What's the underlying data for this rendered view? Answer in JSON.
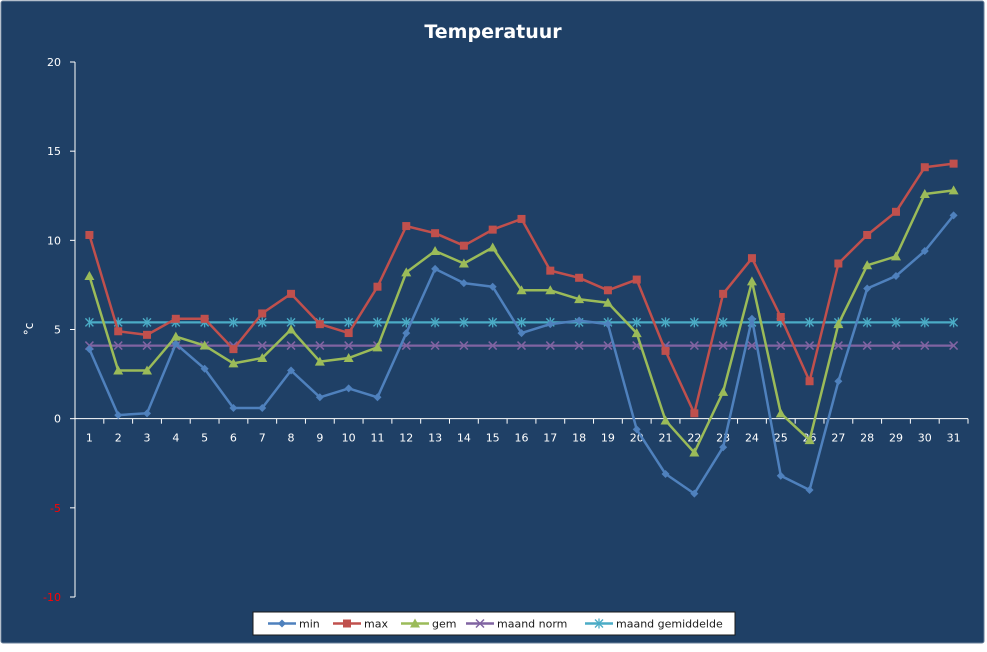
{
  "colors": {
    "background": "#1f4066",
    "border": "#6a7f99",
    "axis": "#ffffff",
    "label": "#ffffff",
    "negative_label": "#ff0000",
    "legend_bg": "#ffffff"
  },
  "chart_data": {
    "type": "line",
    "title": "Temperatuur",
    "ylabel": "°c",
    "xlabel": "",
    "ylim": [
      -10,
      20
    ],
    "ytick_step": 5,
    "grid": false,
    "legend_position": "bottom",
    "categories": [
      "1",
      "2",
      "3",
      "4",
      "5",
      "6",
      "7",
      "8",
      "9",
      "10",
      "11",
      "12",
      "13",
      "14",
      "15",
      "16",
      "17",
      "18",
      "19",
      "20",
      "21",
      "22",
      "23",
      "24",
      "25",
      "26",
      "27",
      "28",
      "29",
      "30",
      "31"
    ],
    "series": [
      {
        "name": "min",
        "color": "#4f81bd",
        "marker": "diamond",
        "values": [
          3.9,
          0.2,
          0.3,
          4.2,
          2.8,
          0.6,
          0.6,
          2.7,
          1.2,
          1.7,
          1.2,
          4.8,
          8.4,
          7.6,
          7.4,
          4.8,
          5.3,
          5.5,
          5.3,
          -0.6,
          -3.1,
          -4.2,
          -1.6,
          5.6,
          -3.2,
          -4.0,
          2.1,
          7.3,
          8.0,
          9.4,
          11.4
        ]
      },
      {
        "name": "max",
        "color": "#c0504d",
        "marker": "square",
        "values": [
          10.3,
          4.9,
          4.7,
          5.6,
          5.6,
          3.9,
          5.9,
          7.0,
          5.3,
          4.8,
          7.4,
          10.8,
          10.4,
          9.7,
          10.6,
          11.2,
          8.3,
          7.9,
          7.2,
          7.8,
          3.8,
          0.3,
          7.0,
          9.0,
          5.7,
          2.1,
          8.7,
          10.3,
          11.6,
          14.1,
          14.3
        ]
      },
      {
        "name": "gem",
        "color": "#9bbb59",
        "marker": "triangle",
        "values": [
          8.0,
          2.7,
          2.7,
          4.6,
          4.1,
          3.1,
          3.4,
          5.0,
          3.2,
          3.4,
          4.0,
          8.2,
          9.4,
          8.7,
          9.6,
          7.2,
          7.2,
          6.7,
          6.5,
          4.8,
          -0.1,
          -1.9,
          1.5,
          7.7,
          0.3,
          -1.2,
          5.3,
          8.6,
          9.1,
          12.6,
          12.8
        ]
      },
      {
        "name": "maand norm",
        "color": "#8064a2",
        "marker": "x",
        "values": [
          4.1,
          4.1,
          4.1,
          4.1,
          4.1,
          4.1,
          4.1,
          4.1,
          4.1,
          4.1,
          4.1,
          4.1,
          4.1,
          4.1,
          4.1,
          4.1,
          4.1,
          4.1,
          4.1,
          4.1,
          4.1,
          4.1,
          4.1,
          4.1,
          4.1,
          4.1,
          4.1,
          4.1,
          4.1,
          4.1,
          4.1
        ]
      },
      {
        "name": "maand gemiddelde",
        "color": "#4bacc6",
        "marker": "star",
        "values": [
          5.4,
          5.4,
          5.4,
          5.4,
          5.4,
          5.4,
          5.4,
          5.4,
          5.4,
          5.4,
          5.4,
          5.4,
          5.4,
          5.4,
          5.4,
          5.4,
          5.4,
          5.4,
          5.4,
          5.4,
          5.4,
          5.4,
          5.4,
          5.4,
          5.4,
          5.4,
          5.4,
          5.4,
          5.4,
          5.4,
          5.4
        ]
      }
    ]
  }
}
